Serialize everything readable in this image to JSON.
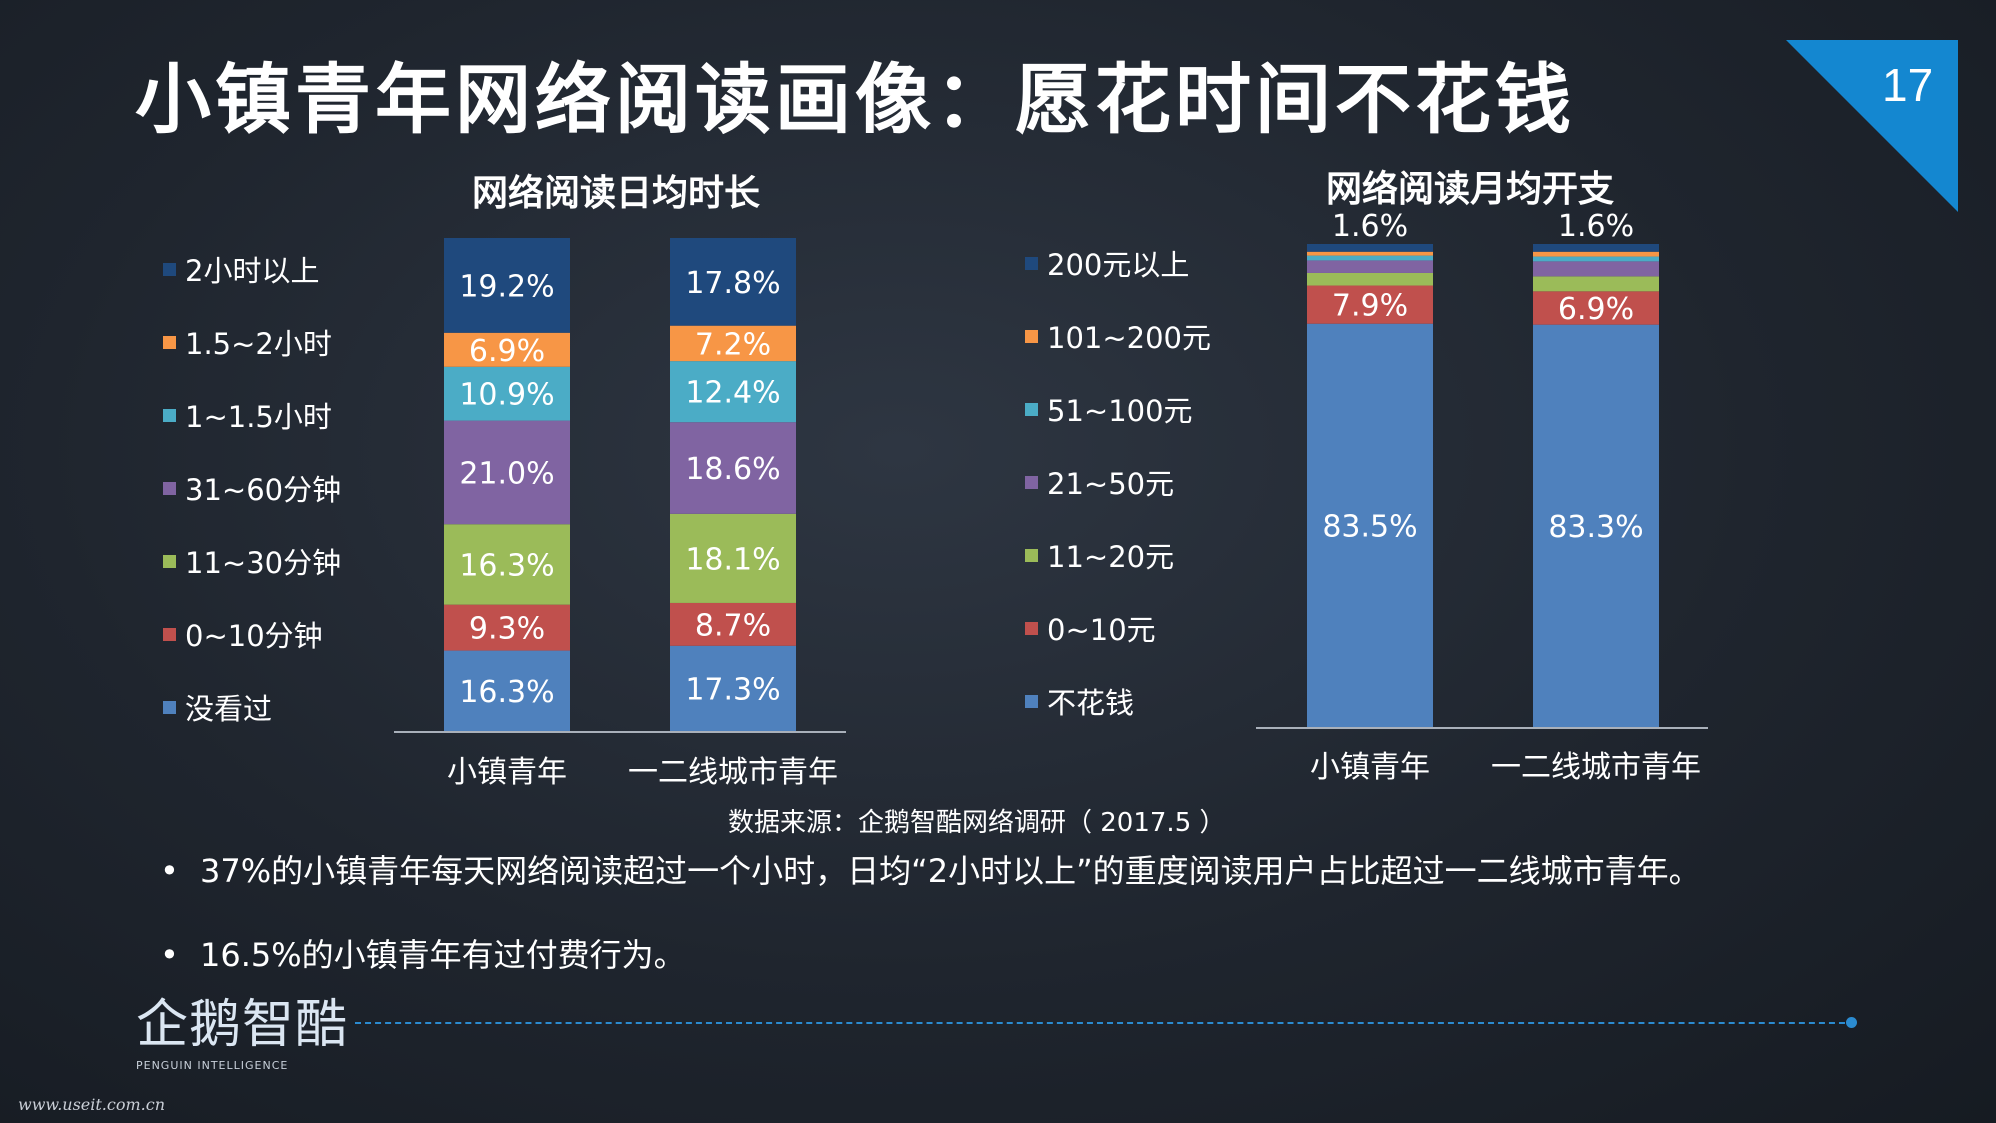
{
  "title": "小镇青年网络阅读画像：愿花时间不花钱",
  "page_number": "17",
  "colors": {
    "accent": "#1487d0",
    "background": "#1f252e"
  },
  "source_note": "数据来源：企鹅智酷网络调研（ 2017.5 ）",
  "bullets": [
    "37%的小镇青年每天网络阅读超过一个小时，日均“2小时以上”的重度阅读用户占比超过一二线城市青年。",
    "16.5%的小镇青年有过付费行为。"
  ],
  "brand": {
    "name": "企鹅智酷",
    "subtitle": "PENGUIN INTELLIGENCE"
  },
  "watermark": "www.useit.com.cn",
  "chart_data": [
    {
      "type": "bar",
      "stacked": true,
      "normalized": true,
      "title": "网络阅读日均时长",
      "categories": [
        "小镇青年",
        "一二线城市青年"
      ],
      "series": [
        {
          "name": "没看过",
          "color": "#4f81bd",
          "values": [
            16.3,
            17.3
          ]
        },
        {
          "name": "0~10分钟",
          "color": "#c0504d",
          "values": [
            9.3,
            8.7
          ]
        },
        {
          "name": "11~30分钟",
          "color": "#9bbb59",
          "values": [
            16.3,
            18.1
          ]
        },
        {
          "name": "31~60分钟",
          "color": "#8064a2",
          "values": [
            21.0,
            18.6
          ]
        },
        {
          "name": "1~1.5小时",
          "color": "#4bacc6",
          "values": [
            10.9,
            12.4
          ]
        },
        {
          "name": "1.5~2小时",
          "color": "#f79646",
          "values": [
            6.9,
            7.2
          ]
        },
        {
          "name": "2小时以上",
          "color": "#1f497d",
          "values": [
            19.2,
            17.8
          ]
        }
      ],
      "data_labels": [
        [
          "16.3%",
          "9.3%",
          "16.3%",
          "21.0%",
          "10.9%",
          "6.9%",
          "19.2%"
        ],
        [
          "17.3%",
          "8.7%",
          "18.1%",
          "18.6%",
          "12.4%",
          "7.2%",
          "17.8%"
        ]
      ],
      "ylim": [
        0,
        100
      ],
      "grid": false,
      "legend_position": "left"
    },
    {
      "type": "bar",
      "stacked": true,
      "normalized": true,
      "title": "网络阅读月均开支",
      "categories": [
        "小镇青年",
        "一二线城市青年"
      ],
      "series": [
        {
          "name": "不花钱",
          "color": "#4f81bd",
          "values": [
            83.5,
            83.3
          ]
        },
        {
          "name": "0~10元",
          "color": "#c0504d",
          "values": [
            7.9,
            6.9
          ]
        },
        {
          "name": "11~20元",
          "color": "#9bbb59",
          "values": [
            2.6,
            3.1
          ]
        },
        {
          "name": "21~50元",
          "color": "#8064a2",
          "values": [
            2.6,
            3.1
          ]
        },
        {
          "name": "51~100元",
          "color": "#4bacc6",
          "values": [
            1.0,
            1.0
          ]
        },
        {
          "name": "101~200元",
          "color": "#f79646",
          "values": [
            0.8,
            1.0
          ]
        },
        {
          "name": "200元以上",
          "color": "#1f497d",
          "values": [
            1.6,
            1.6
          ]
        }
      ],
      "data_labels": [
        [
          "83.5%",
          "7.9%",
          "",
          "",
          "",
          "",
          "1.6%"
        ],
        [
          "83.3%",
          "6.9%",
          "",
          "",
          "",
          "",
          "1.6%"
        ]
      ],
      "ylim": [
        0,
        100
      ],
      "grid": false,
      "legend_position": "left"
    }
  ]
}
